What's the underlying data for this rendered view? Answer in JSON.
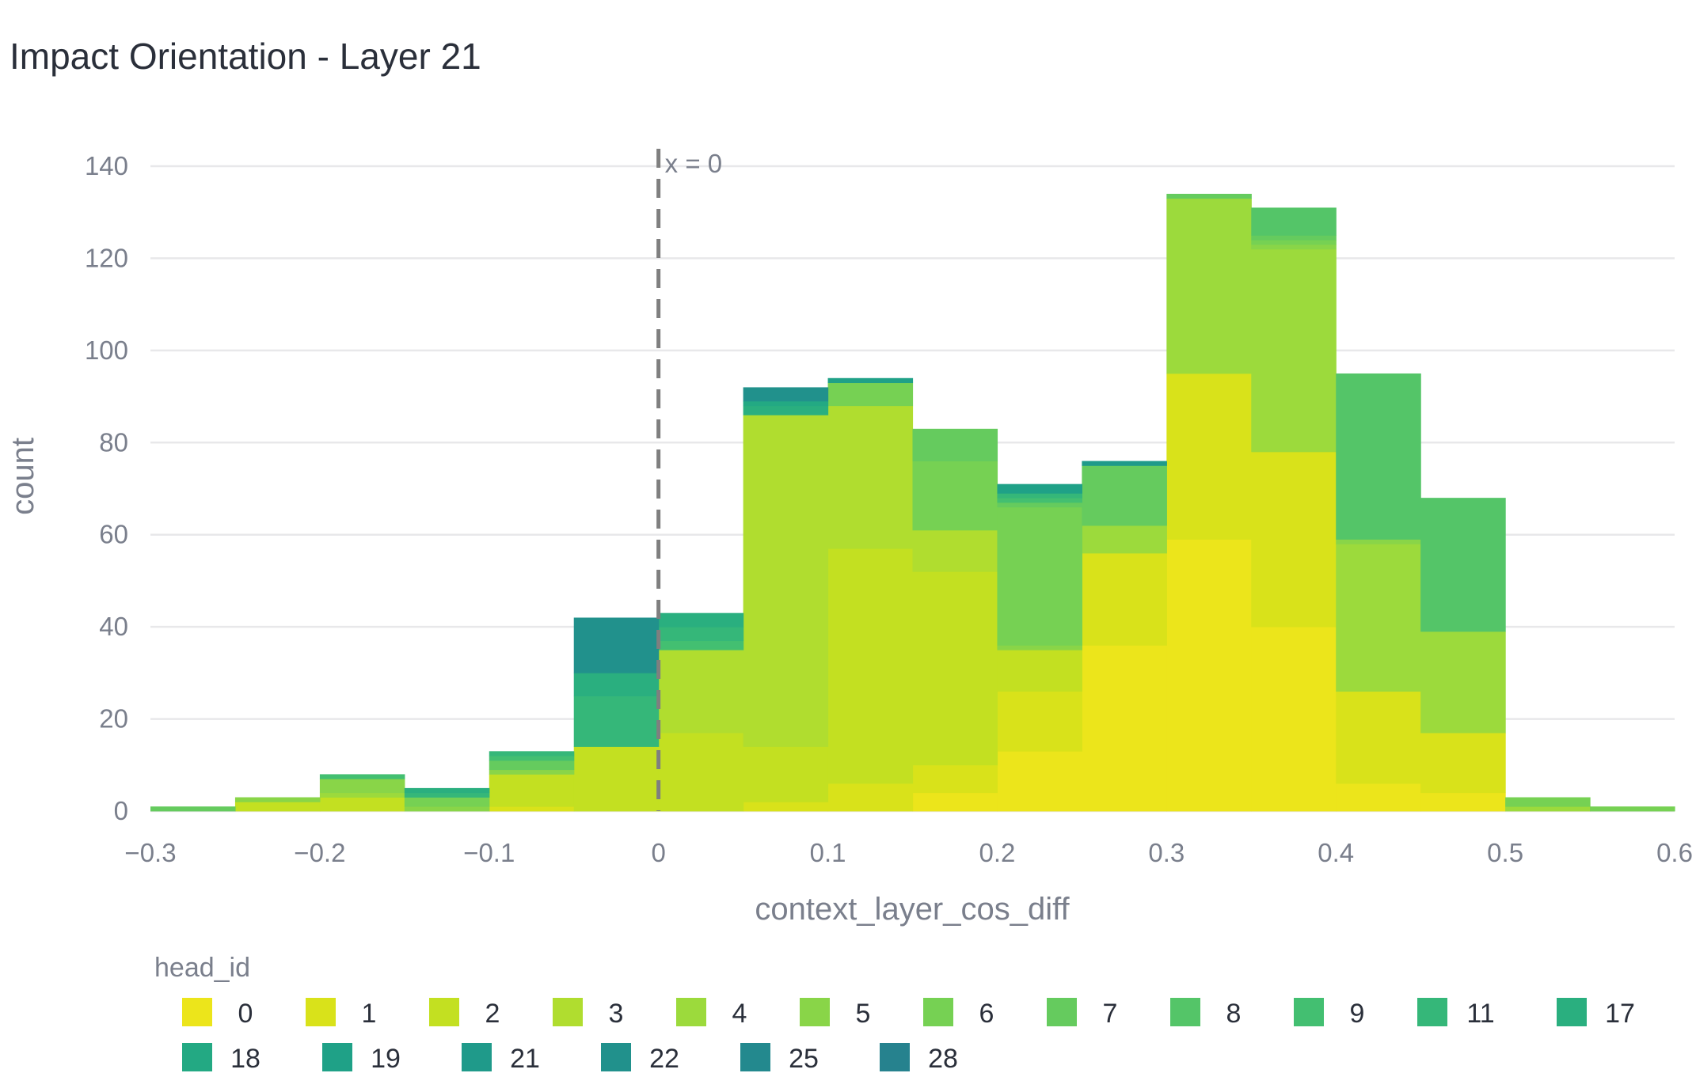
{
  "chart_data": {
    "type": "histogram-stacked",
    "title": "Impact Orientation - Layer 21",
    "xlabel": "context_layer_cos_diff",
    "ylabel": "count",
    "xlim": [
      -0.3,
      0.6
    ],
    "ylim": [
      0,
      145
    ],
    "bin_width": 0.05,
    "bin_edges": [
      -0.3,
      -0.25,
      -0.2,
      -0.15,
      -0.1,
      -0.05,
      0,
      0.05,
      0.1,
      0.15,
      0.2,
      0.25,
      0.3,
      0.35,
      0.4,
      0.45,
      0.5,
      0.55,
      0.6
    ],
    "x_ticks": [
      -0.3,
      -0.2,
      -0.1,
      0,
      0.1,
      0.2,
      0.3,
      0.4,
      0.5,
      0.6
    ],
    "x_tick_labels": [
      "−0.3",
      "−0.2",
      "−0.1",
      "0",
      "0.1",
      "0.2",
      "0.3",
      "0.4",
      "0.5",
      "0.6"
    ],
    "y_ticks": [
      0,
      20,
      40,
      60,
      80,
      100,
      120,
      140
    ],
    "y_tick_labels": [
      "0",
      "20",
      "40",
      "60",
      "80",
      "100",
      "120",
      "140"
    ],
    "grid": true,
    "legend": {
      "title": "head_id",
      "placement": "bottom"
    },
    "reference_line": {
      "x": 0,
      "label": "x = 0",
      "style": "dashed",
      "color": "#7f7f7f"
    },
    "series": [
      {
        "name": "0",
        "color": "#ece51b",
        "values": [
          0,
          0,
          0,
          0,
          0,
          0,
          0,
          0,
          0,
          4,
          13,
          36,
          59,
          40,
          6,
          4,
          0,
          0
        ]
      },
      {
        "name": "1",
        "color": "#d9e21a",
        "values": [
          0,
          0,
          0,
          0,
          1,
          0,
          0,
          2,
          6,
          6,
          13,
          20,
          36,
          38,
          20,
          13,
          0,
          0
        ]
      },
      {
        "name": "2",
        "color": "#c3e021",
        "values": [
          0,
          2,
          3,
          0,
          7,
          14,
          17,
          12,
          51,
          42,
          9,
          0,
          0,
          0,
          0,
          0,
          0,
          0
        ]
      },
      {
        "name": "3",
        "color": "#b0dd2f",
        "values": [
          0,
          0,
          0,
          0,
          0,
          0,
          18,
          72,
          31,
          9,
          0,
          0,
          0,
          0,
          0,
          0,
          0,
          0
        ]
      },
      {
        "name": "4",
        "color": "#9cda3c",
        "values": [
          0,
          0,
          1,
          0,
          0,
          0,
          0,
          0,
          0,
          0,
          0,
          6,
          38,
          44,
          32,
          22,
          1,
          0
        ]
      },
      {
        "name": "5",
        "color": "#89d548",
        "values": [
          0,
          1,
          3,
          1,
          1,
          0,
          0,
          0,
          0,
          0,
          1,
          0,
          0,
          1,
          1,
          0,
          0,
          0
        ]
      },
      {
        "name": "6",
        "color": "#76d153",
        "values": [
          0,
          0,
          0,
          2,
          0,
          0,
          0,
          0,
          5,
          15,
          30,
          0,
          0,
          1,
          0,
          0,
          2,
          1
        ]
      },
      {
        "name": "7",
        "color": "#65cb5e",
        "values": [
          1,
          0,
          0,
          0,
          2,
          0,
          0,
          0,
          0,
          7,
          1,
          13,
          1,
          1,
          0,
          0,
          0,
          0
        ]
      },
      {
        "name": "8",
        "color": "#54c568",
        "values": [
          0,
          0,
          0,
          0,
          0,
          0,
          0,
          0,
          0,
          0,
          0,
          0,
          0,
          6,
          36,
          29,
          0,
          0
        ]
      },
      {
        "name": "9",
        "color": "#43bf71",
        "values": [
          0,
          0,
          1,
          0,
          1,
          0,
          2,
          0,
          0,
          0,
          1,
          0,
          0,
          0,
          0,
          0,
          0,
          0
        ]
      },
      {
        "name": "11",
        "color": "#35b779",
        "values": [
          0,
          0,
          0,
          1,
          1,
          11,
          3,
          0,
          0,
          0,
          1,
          0,
          0,
          0,
          0,
          0,
          0,
          0
        ]
      },
      {
        "name": "17",
        "color": "#2aaf7f",
        "values": [
          0,
          0,
          0,
          1,
          0,
          5,
          3,
          2,
          0,
          0,
          0,
          0,
          0,
          0,
          0,
          0,
          0,
          0
        ]
      },
      {
        "name": "18",
        "color": "#23a983",
        "values": [
          0,
          0,
          0,
          0,
          0,
          0,
          0,
          1,
          0,
          0,
          0,
          0,
          0,
          0,
          0,
          0,
          0,
          0
        ]
      },
      {
        "name": "19",
        "color": "#1fa187",
        "values": [
          0,
          0,
          0,
          0,
          0,
          0,
          0,
          0,
          1,
          0,
          2,
          0,
          0,
          0,
          0,
          0,
          0,
          0
        ]
      },
      {
        "name": "21",
        "color": "#1f9a8a",
        "values": [
          0,
          0,
          0,
          0,
          0,
          0,
          0,
          0,
          0,
          0,
          0,
          1,
          0,
          0,
          0,
          0,
          0,
          0
        ]
      },
      {
        "name": "22",
        "color": "#21918c",
        "values": [
          0,
          0,
          0,
          0,
          0,
          12,
          0,
          3,
          0,
          0,
          0,
          0,
          0,
          0,
          0,
          0,
          0,
          0
        ]
      },
      {
        "name": "25",
        "color": "#23898e",
        "values": [
          0,
          0,
          0,
          0,
          0,
          0,
          0,
          0,
          0,
          0,
          0,
          0,
          0,
          0,
          0,
          0,
          0,
          0
        ]
      },
      {
        "name": "28",
        "color": "#26828e",
        "values": [
          0,
          0,
          0,
          0,
          0,
          0,
          0,
          0,
          0,
          0,
          0,
          0,
          0,
          0,
          0,
          0,
          0,
          0
        ]
      }
    ]
  }
}
